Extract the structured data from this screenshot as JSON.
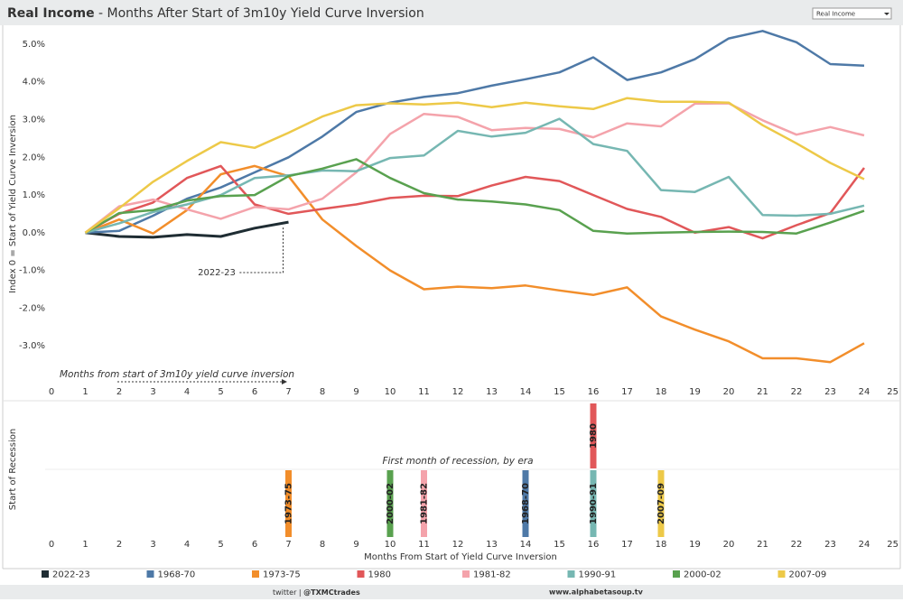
{
  "header": {
    "title_bold": "Real Income",
    "title_rest": "- Months After Start of 3m10y Yield Curve Inversion",
    "dropdown": "Real Income"
  },
  "chart_data": [
    {
      "type": "line",
      "y_label": "Index 0 = Start of Yield Curve Inversion",
      "annotations": [
        "2022-23",
        "Months from start of 3m10y yield curve inversion"
      ],
      "x": [
        1,
        2,
        3,
        4,
        5,
        6,
        7,
        8,
        9,
        10,
        11,
        12,
        13,
        14,
        15,
        16,
        17,
        18,
        19,
        20,
        21,
        22,
        23,
        24
      ],
      "xlim": [
        0,
        25
      ],
      "xticks": [
        0,
        1,
        2,
        3,
        4,
        5,
        6,
        7,
        8,
        9,
        10,
        11,
        12,
        13,
        14,
        15,
        16,
        17,
        18,
        19,
        20,
        21,
        22,
        23,
        24,
        25
      ],
      "ylim": [
        -4,
        5.5
      ],
      "yticks": [
        {
          "value": -3,
          "label": "-3.0%"
        },
        {
          "value": -2,
          "label": "-2.0%"
        },
        {
          "value": -1,
          "label": "-1.0%"
        },
        {
          "value": 0,
          "label": "0.0%"
        },
        {
          "value": 1,
          "label": "1.0%"
        },
        {
          "value": 2,
          "label": "2.0%"
        },
        {
          "value": 3,
          "label": "3.0%"
        },
        {
          "value": 4,
          "label": "4.0%"
        },
        {
          "value": 5,
          "label": "5.0%"
        }
      ],
      "grid": false,
      "series": [
        {
          "name": "2022-23",
          "color": "#1f2d33",
          "values": [
            0,
            -0.1,
            -0.12,
            -0.05,
            -0.1,
            0.12,
            0.28,
            null,
            null,
            null,
            null,
            null,
            null,
            null,
            null,
            null,
            null,
            null,
            null,
            null,
            null,
            null,
            null,
            null
          ]
        },
        {
          "name": "1968-70",
          "color": "#4e79a7",
          "values": [
            0,
            0.05,
            0.45,
            0.9,
            1.2,
            1.6,
            2.0,
            2.55,
            3.2,
            3.45,
            3.6,
            3.7,
            3.9,
            4.07,
            4.25,
            4.65,
            4.05,
            4.25,
            4.6,
            5.15,
            5.35,
            5.05,
            4.47,
            4.43
          ]
        },
        {
          "name": "1973-75",
          "color": "#f28e2b",
          "values": [
            0,
            0.35,
            -0.02,
            0.6,
            1.55,
            1.77,
            1.5,
            0.35,
            -0.35,
            -1.0,
            -1.5,
            -1.43,
            -1.47,
            -1.4,
            -1.53,
            -1.65,
            -1.45,
            -2.22,
            -2.57,
            -2.88,
            -3.33,
            -3.33,
            -3.43,
            -2.93
          ]
        },
        {
          "name": "1980",
          "color": "#e15759",
          "values": [
            0,
            0.5,
            0.8,
            1.45,
            1.77,
            0.75,
            0.5,
            0.63,
            0.75,
            0.92,
            0.98,
            0.97,
            1.25,
            1.48,
            1.37,
            1.0,
            0.63,
            0.42,
            0.0,
            0.15,
            -0.15,
            0.2,
            0.52,
            1.72
          ]
        },
        {
          "name": "1981-82",
          "color": "#f4a3ab",
          "values": [
            0,
            0.7,
            0.88,
            0.62,
            0.37,
            0.68,
            0.62,
            0.9,
            1.6,
            2.62,
            3.15,
            3.07,
            2.72,
            2.78,
            2.75,
            2.53,
            2.9,
            2.82,
            3.42,
            3.43,
            2.98,
            2.6,
            2.8,
            2.58
          ]
        },
        {
          "name": "1990-91",
          "color": "#76b7b2",
          "values": [
            0,
            0.25,
            0.55,
            0.75,
            1.0,
            1.45,
            1.52,
            1.65,
            1.63,
            1.98,
            2.05,
            2.7,
            2.55,
            2.65,
            3.02,
            2.35,
            2.17,
            1.13,
            1.08,
            1.48,
            0.47,
            0.45,
            0.5,
            0.72
          ]
        },
        {
          "name": "2000-02",
          "color": "#59a14f",
          "values": [
            0,
            0.52,
            0.6,
            0.85,
            0.97,
            1.0,
            1.5,
            1.7,
            1.95,
            1.45,
            1.05,
            0.88,
            0.83,
            0.75,
            0.6,
            0.05,
            -0.02,
            0.0,
            0.02,
            0.03,
            0.02,
            -0.02,
            0.27,
            0.58
          ]
        },
        {
          "name": "2007-09",
          "color": "#edc948",
          "values": [
            0,
            0.65,
            1.35,
            1.9,
            2.4,
            2.25,
            2.65,
            3.08,
            3.38,
            3.43,
            3.4,
            3.45,
            3.33,
            3.45,
            3.35,
            3.28,
            3.57,
            3.47,
            3.47,
            3.45,
            2.85,
            2.37,
            1.85,
            1.42
          ]
        }
      ]
    },
    {
      "type": "strip",
      "title": "First month of recession, by era",
      "y_label": "Start of Recession",
      "x_label": "Months From Start of Yield Curve Inversion",
      "xlim": [
        0,
        25
      ],
      "xticks": [
        0,
        1,
        2,
        3,
        4,
        5,
        6,
        7,
        8,
        9,
        10,
        11,
        12,
        13,
        14,
        15,
        16,
        17,
        18,
        19,
        20,
        21,
        22,
        23,
        24,
        25
      ],
      "categories": [
        "1968-70",
        "1973-75",
        "1980",
        "1981-82",
        "1990-91",
        "2000-02",
        "2007-09"
      ],
      "values": [
        14,
        7,
        16,
        11,
        16,
        10,
        18
      ],
      "colors": [
        "#4e79a7",
        "#f28e2b",
        "#e15759",
        "#f4a3ab",
        "#76b7b2",
        "#59a14f",
        "#edc948"
      ]
    }
  ],
  "footer": {
    "twitter_prefix": "twitter |",
    "twitter_handle": "@TXMCtrades",
    "site": "www.alphabetasoup.tv"
  }
}
